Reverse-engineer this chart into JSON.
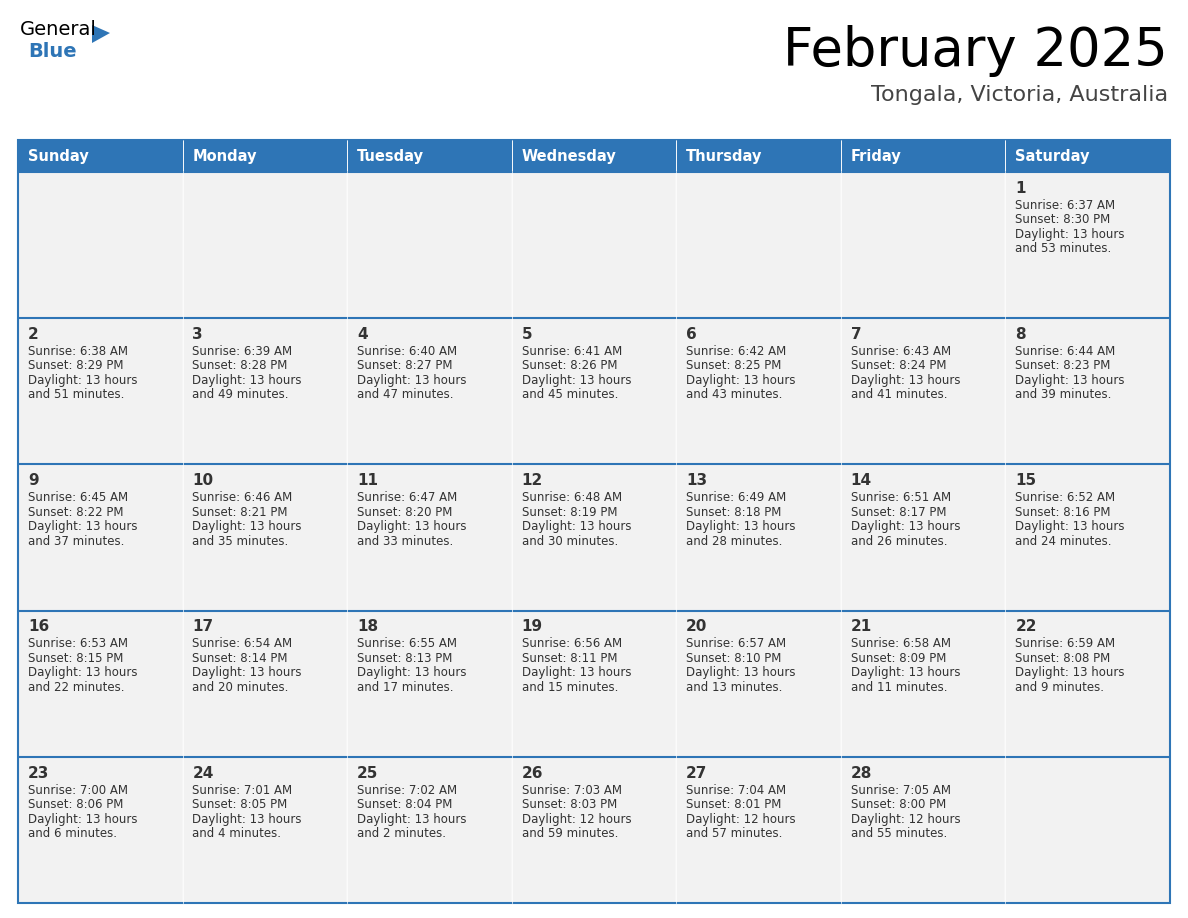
{
  "title": "February 2025",
  "subtitle": "Tongala, Victoria, Australia",
  "header_color": "#2E75B6",
  "header_text_color": "#FFFFFF",
  "cell_bg_color": "#F2F2F2",
  "border_color": "#2E75B6",
  "text_color": "#333333",
  "days_of_week": [
    "Sunday",
    "Monday",
    "Tuesday",
    "Wednesday",
    "Thursday",
    "Friday",
    "Saturday"
  ],
  "weeks": [
    [
      {
        "day": "",
        "sunrise": "",
        "sunset": "",
        "daylight": ""
      },
      {
        "day": "",
        "sunrise": "",
        "sunset": "",
        "daylight": ""
      },
      {
        "day": "",
        "sunrise": "",
        "sunset": "",
        "daylight": ""
      },
      {
        "day": "",
        "sunrise": "",
        "sunset": "",
        "daylight": ""
      },
      {
        "day": "",
        "sunrise": "",
        "sunset": "",
        "daylight": ""
      },
      {
        "day": "",
        "sunrise": "",
        "sunset": "",
        "daylight": ""
      },
      {
        "day": "1",
        "sunrise": "6:37 AM",
        "sunset": "8:30 PM",
        "daylight": "13 hours and 53 minutes."
      }
    ],
    [
      {
        "day": "2",
        "sunrise": "6:38 AM",
        "sunset": "8:29 PM",
        "daylight": "13 hours and 51 minutes."
      },
      {
        "day": "3",
        "sunrise": "6:39 AM",
        "sunset": "8:28 PM",
        "daylight": "13 hours and 49 minutes."
      },
      {
        "day": "4",
        "sunrise": "6:40 AM",
        "sunset": "8:27 PM",
        "daylight": "13 hours and 47 minutes."
      },
      {
        "day": "5",
        "sunrise": "6:41 AM",
        "sunset": "8:26 PM",
        "daylight": "13 hours and 45 minutes."
      },
      {
        "day": "6",
        "sunrise": "6:42 AM",
        "sunset": "8:25 PM",
        "daylight": "13 hours and 43 minutes."
      },
      {
        "day": "7",
        "sunrise": "6:43 AM",
        "sunset": "8:24 PM",
        "daylight": "13 hours and 41 minutes."
      },
      {
        "day": "8",
        "sunrise": "6:44 AM",
        "sunset": "8:23 PM",
        "daylight": "13 hours and 39 minutes."
      }
    ],
    [
      {
        "day": "9",
        "sunrise": "6:45 AM",
        "sunset": "8:22 PM",
        "daylight": "13 hours and 37 minutes."
      },
      {
        "day": "10",
        "sunrise": "6:46 AM",
        "sunset": "8:21 PM",
        "daylight": "13 hours and 35 minutes."
      },
      {
        "day": "11",
        "sunrise": "6:47 AM",
        "sunset": "8:20 PM",
        "daylight": "13 hours and 33 minutes."
      },
      {
        "day": "12",
        "sunrise": "6:48 AM",
        "sunset": "8:19 PM",
        "daylight": "13 hours and 30 minutes."
      },
      {
        "day": "13",
        "sunrise": "6:49 AM",
        "sunset": "8:18 PM",
        "daylight": "13 hours and 28 minutes."
      },
      {
        "day": "14",
        "sunrise": "6:51 AM",
        "sunset": "8:17 PM",
        "daylight": "13 hours and 26 minutes."
      },
      {
        "day": "15",
        "sunrise": "6:52 AM",
        "sunset": "8:16 PM",
        "daylight": "13 hours and 24 minutes."
      }
    ],
    [
      {
        "day": "16",
        "sunrise": "6:53 AM",
        "sunset": "8:15 PM",
        "daylight": "13 hours and 22 minutes."
      },
      {
        "day": "17",
        "sunrise": "6:54 AM",
        "sunset": "8:14 PM",
        "daylight": "13 hours and 20 minutes."
      },
      {
        "day": "18",
        "sunrise": "6:55 AM",
        "sunset": "8:13 PM",
        "daylight": "13 hours and 17 minutes."
      },
      {
        "day": "19",
        "sunrise": "6:56 AM",
        "sunset": "8:11 PM",
        "daylight": "13 hours and 15 minutes."
      },
      {
        "day": "20",
        "sunrise": "6:57 AM",
        "sunset": "8:10 PM",
        "daylight": "13 hours and 13 minutes."
      },
      {
        "day": "21",
        "sunrise": "6:58 AM",
        "sunset": "8:09 PM",
        "daylight": "13 hours and 11 minutes."
      },
      {
        "day": "22",
        "sunrise": "6:59 AM",
        "sunset": "8:08 PM",
        "daylight": "13 hours and 9 minutes."
      }
    ],
    [
      {
        "day": "23",
        "sunrise": "7:00 AM",
        "sunset": "8:06 PM",
        "daylight": "13 hours and 6 minutes."
      },
      {
        "day": "24",
        "sunrise": "7:01 AM",
        "sunset": "8:05 PM",
        "daylight": "13 hours and 4 minutes."
      },
      {
        "day": "25",
        "sunrise": "7:02 AM",
        "sunset": "8:04 PM",
        "daylight": "13 hours and 2 minutes."
      },
      {
        "day": "26",
        "sunrise": "7:03 AM",
        "sunset": "8:03 PM",
        "daylight": "12 hours and 59 minutes."
      },
      {
        "day": "27",
        "sunrise": "7:04 AM",
        "sunset": "8:01 PM",
        "daylight": "12 hours and 57 minutes."
      },
      {
        "day": "28",
        "sunrise": "7:05 AM",
        "sunset": "8:00 PM",
        "daylight": "12 hours and 55 minutes."
      },
      {
        "day": "",
        "sunrise": "",
        "sunset": "",
        "daylight": ""
      }
    ]
  ],
  "fig_width": 11.88,
  "fig_height": 9.18
}
